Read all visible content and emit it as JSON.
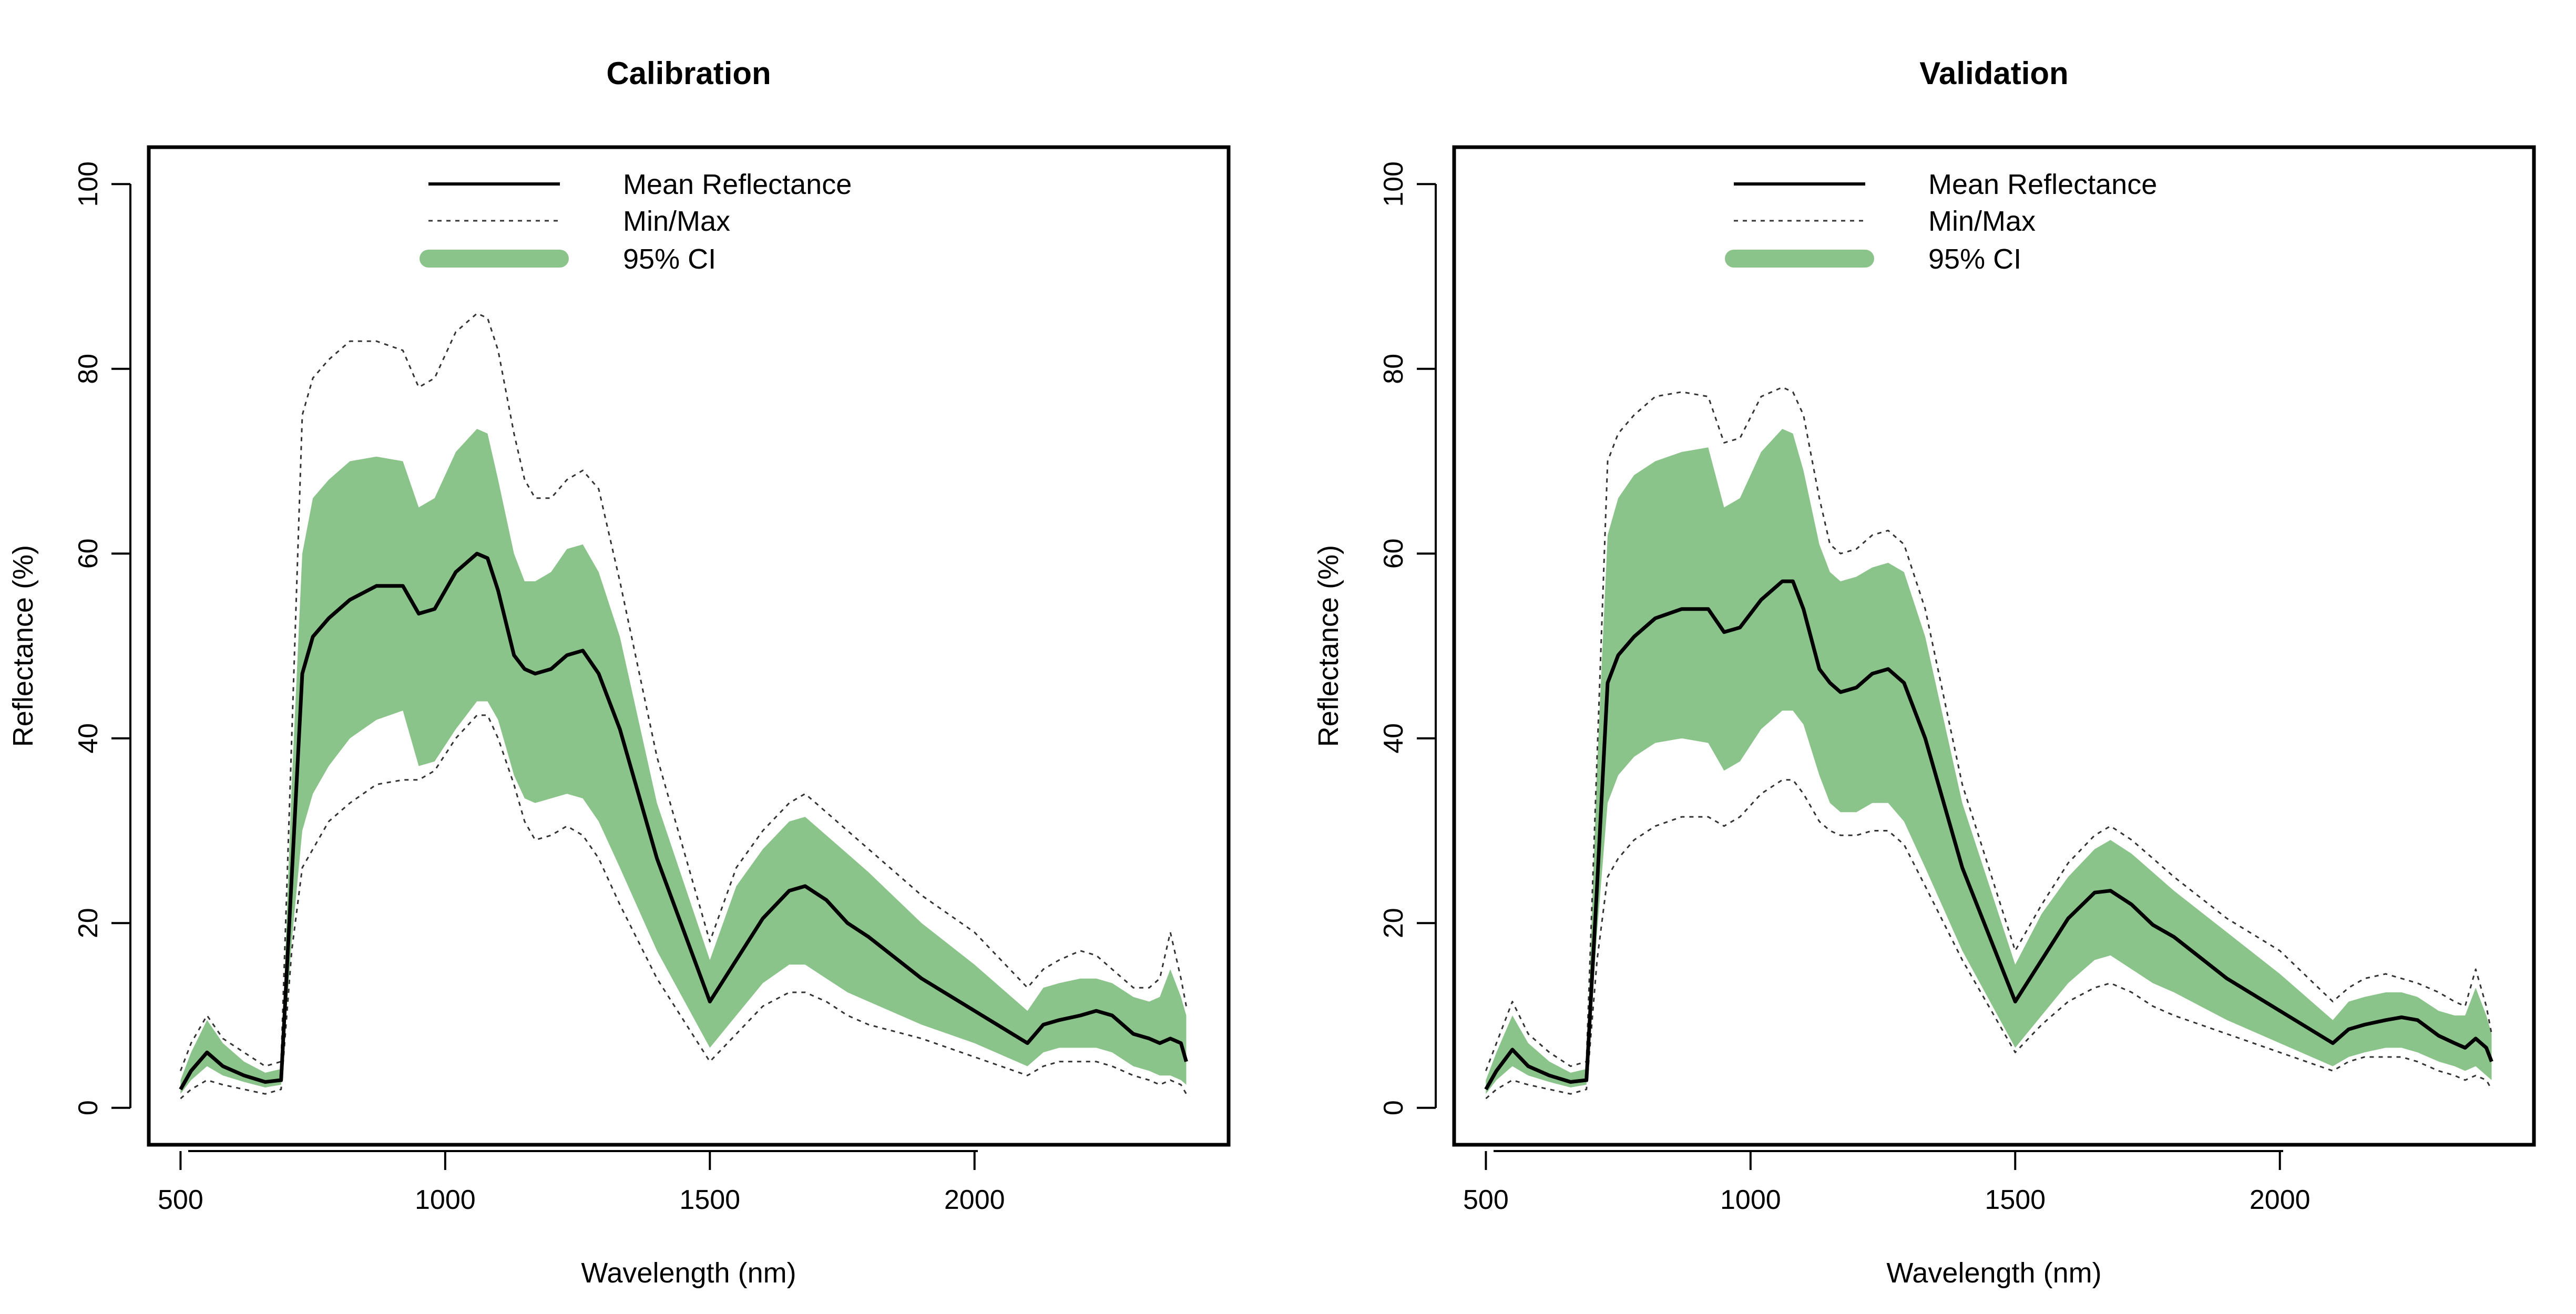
{
  "colors": {
    "mean": "#000000",
    "minmax": "#333333",
    "ci": "#8BC48A",
    "background": "#ffffff"
  },
  "chart_data": [
    {
      "type": "line",
      "title": "Calibration",
      "xlabel": "Wavelength (nm)",
      "ylabel": "Reflectance (%)",
      "xlim": [
        440,
        2480
      ],
      "ylim": [
        -4,
        104
      ],
      "xticks": [
        "500",
        "1000",
        "1500",
        "2000"
      ],
      "yticks": [
        "0",
        "20",
        "40",
        "60",
        "80",
        "100"
      ],
      "grid": false,
      "legend_position": "top-center",
      "legend": [
        "Mean Reflectance",
        "Min/Max",
        "95% CI"
      ],
      "x": [
        500,
        520,
        550,
        580,
        620,
        660,
        690,
        710,
        730,
        750,
        780,
        820,
        870,
        920,
        950,
        980,
        1020,
        1060,
        1080,
        1100,
        1130,
        1150,
        1170,
        1200,
        1230,
        1260,
        1290,
        1330,
        1400,
        1500,
        1550,
        1600,
        1650,
        1680,
        1720,
        1760,
        1800,
        1900,
        2000,
        2100,
        2130,
        2160,
        2200,
        2230,
        2260,
        2300,
        2330,
        2350,
        2370,
        2390,
        2400
      ],
      "series": [
        {
          "name": "Mean Reflectance",
          "values": [
            2,
            4,
            6,
            4.5,
            3.5,
            2.8,
            3,
            25,
            47,
            51,
            53,
            55,
            56.5,
            56.5,
            53.5,
            54,
            58,
            60,
            59.5,
            56,
            49,
            47.5,
            47,
            47.5,
            49,
            49.5,
            47,
            41,
            27,
            11.5,
            16,
            20.5,
            23.5,
            24,
            22.5,
            20,
            18.5,
            14,
            10.5,
            7,
            9,
            9.5,
            10,
            10.5,
            10,
            8,
            7.5,
            7,
            7.5,
            7,
            5
          ]
        },
        {
          "name": "Min",
          "values": [
            1,
            2,
            3,
            2.5,
            2,
            1.5,
            2,
            17,
            26,
            28,
            31,
            33,
            35,
            35.5,
            35.5,
            36.5,
            40,
            42.5,
            42.5,
            40,
            35,
            31,
            29,
            29.5,
            30.5,
            29.5,
            27,
            22,
            14,
            5,
            8,
            11,
            12.5,
            12.5,
            11.5,
            10,
            9,
            7.5,
            5.5,
            3.5,
            4.5,
            5,
            5,
            5,
            4.5,
            3.5,
            3,
            2.5,
            3,
            2.5,
            1.5
          ]
        },
        {
          "name": "Max",
          "values": [
            4,
            7,
            10,
            7.5,
            6,
            4.5,
            5,
            40,
            75,
            79,
            81,
            83,
            83,
            82,
            78,
            79,
            84,
            86,
            85.5,
            82,
            73,
            68,
            66,
            66,
            68,
            69,
            67,
            57,
            38,
            18,
            26,
            30,
            33,
            34,
            32,
            30,
            28,
            23,
            19,
            13,
            15,
            16,
            17,
            16.5,
            15,
            13,
            13,
            14,
            19,
            14,
            11
          ]
        },
        {
          "name": "CI Lower",
          "values": [
            1.5,
            3,
            4.5,
            3.5,
            2.8,
            2.2,
            2.5,
            18,
            30,
            34,
            37,
            40,
            42,
            43,
            37,
            37.5,
            41,
            44,
            44,
            42,
            36,
            33.5,
            33,
            33.5,
            34,
            33.5,
            31,
            26,
            17,
            6.5,
            10,
            13.5,
            15.5,
            15.5,
            14,
            12.5,
            11.5,
            9,
            7,
            4.5,
            6,
            6.5,
            6.5,
            6.5,
            6,
            4.5,
            4,
            3.5,
            3.5,
            3,
            2.5
          ]
        },
        {
          "name": "CI Upper",
          "values": [
            3,
            6,
            9.5,
            7,
            5,
            3.8,
            4.2,
            35,
            60,
            66,
            68,
            70,
            70.5,
            70,
            65,
            66,
            71,
            73.5,
            73,
            68,
            60,
            57,
            57,
            58,
            60.5,
            61,
            58,
            51,
            33,
            16,
            24,
            28,
            31,
            31.5,
            29.5,
            27.5,
            25.5,
            20,
            15.5,
            10.5,
            13,
            13.5,
            14,
            14,
            13.5,
            12,
            11.5,
            12,
            15,
            12,
            10
          ]
        }
      ]
    },
    {
      "type": "line",
      "title": "Validation",
      "xlabel": "Wavelength (nm)",
      "ylabel": "Reflectance (%)",
      "xlim": [
        440,
        2480
      ],
      "ylim": [
        -4,
        104
      ],
      "xticks": [
        "500",
        "1000",
        "1500",
        "2000"
      ],
      "yticks": [
        "0",
        "20",
        "40",
        "60",
        "80",
        "100"
      ],
      "grid": false,
      "legend_position": "top-center",
      "legend": [
        "Mean Reflectance",
        "Min/Max",
        "95% CI"
      ],
      "x": [
        500,
        520,
        550,
        580,
        620,
        660,
        690,
        710,
        730,
        750,
        780,
        820,
        870,
        920,
        950,
        980,
        1020,
        1060,
        1080,
        1100,
        1130,
        1150,
        1170,
        1200,
        1230,
        1260,
        1290,
        1330,
        1400,
        1500,
        1550,
        1600,
        1650,
        1680,
        1720,
        1760,
        1800,
        1900,
        2000,
        2100,
        2130,
        2160,
        2200,
        2230,
        2260,
        2300,
        2330,
        2350,
        2370,
        2390,
        2400
      ],
      "series": [
        {
          "name": "Mean Reflectance",
          "values": [
            2,
            4,
            6.3,
            4.5,
            3.5,
            2.8,
            3,
            24,
            46,
            49,
            51,
            53,
            54,
            54,
            51.5,
            52,
            55,
            57,
            57,
            54,
            47.5,
            46,
            45,
            45.5,
            47,
            47.5,
            46,
            40,
            26,
            11.5,
            16,
            20.5,
            23.3,
            23.5,
            22,
            19.8,
            18.5,
            14,
            10.5,
            7,
            8.5,
            9,
            9.5,
            9.8,
            9.5,
            7.8,
            7,
            6.5,
            7.5,
            6.5,
            5
          ]
        },
        {
          "name": "Min",
          "values": [
            1,
            2,
            3,
            2.5,
            2,
            1.5,
            2,
            16,
            25,
            27,
            29,
            30.5,
            31.5,
            31.5,
            30.5,
            31.5,
            34,
            35.5,
            35.5,
            34,
            31,
            30,
            29.5,
            29.5,
            30,
            30,
            28.5,
            24,
            16,
            6,
            9,
            11.5,
            13,
            13.5,
            12.5,
            11,
            10,
            8,
            6,
            4,
            5,
            5.5,
            5.5,
            5.5,
            5,
            4,
            3.5,
            3,
            3.5,
            3,
            2
          ]
        },
        {
          "name": "Max",
          "values": [
            4,
            7,
            11.5,
            8,
            6,
            4.5,
            5,
            38,
            70,
            73,
            75,
            77,
            77.5,
            77,
            72,
            72.5,
            77,
            78,
            77.5,
            75,
            66,
            61,
            60,
            60.5,
            62,
            62.5,
            61,
            54,
            35,
            17,
            22,
            26.5,
            29.5,
            30.5,
            29,
            27,
            25,
            20.5,
            17,
            11.5,
            13,
            14,
            14.5,
            14,
            13.5,
            12.5,
            11.5,
            11,
            15,
            11,
            8
          ]
        },
        {
          "name": "CI Lower",
          "values": [
            1.5,
            3,
            4.5,
            3.5,
            2.8,
            2.2,
            2.5,
            19,
            33,
            36,
            38,
            39.5,
            40,
            39.5,
            36.5,
            37.5,
            41,
            43,
            43,
            41.5,
            36,
            33,
            32,
            32,
            33,
            33,
            31,
            26,
            17,
            6.5,
            10,
            13.5,
            16,
            16.5,
            15,
            13.5,
            12.5,
            9.5,
            7,
            4.5,
            5.5,
            6,
            6.5,
            6.5,
            6,
            5,
            4.5,
            4,
            4.5,
            3.5,
            3
          ]
        },
        {
          "name": "CI Upper",
          "values": [
            3,
            6,
            10,
            7,
            5,
            3.8,
            4.2,
            37,
            62,
            66,
            68.5,
            70,
            71,
            71.5,
            65,
            66,
            71,
            73.5,
            73,
            69,
            61,
            58,
            57,
            57.5,
            58.5,
            59,
            58,
            51,
            33,
            15.5,
            21,
            25,
            28,
            29,
            27.5,
            25.5,
            23.5,
            19,
            14.5,
            9.5,
            11.5,
            12,
            12.5,
            12.5,
            12,
            10.5,
            10,
            10,
            13,
            10,
            8
          ]
        }
      ]
    }
  ]
}
